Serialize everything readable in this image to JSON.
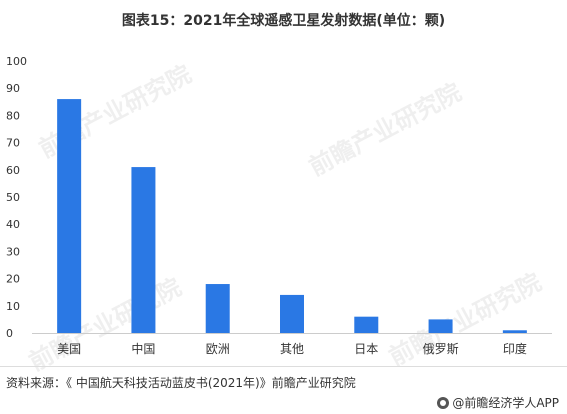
{
  "title": "图表15：2021年全球遥感卫星发射数据(单位：颗)",
  "watermark_text": "前瞻产业研究院",
  "source": "资料来源：《 中国航天科技活动蓝皮书(2021年)》前瞻产业研究院",
  "brand": "@前瞻经济学人APP",
  "colors": {
    "bar": "#2a78e4",
    "axis": "#cccccc",
    "text": "#333333"
  },
  "chart_data": {
    "type": "bar",
    "title": "图表15：2021年全球遥感卫星发射数据(单位：颗)",
    "xlabel": "",
    "ylabel": "",
    "categories": [
      "美国",
      "中国",
      "欧洲",
      "其他",
      "日本",
      "俄罗斯",
      "印度"
    ],
    "values": [
      86,
      61,
      18,
      14,
      6,
      5,
      1
    ],
    "ylim": [
      0,
      100
    ],
    "yticks": [
      0,
      10,
      20,
      30,
      40,
      50,
      60,
      70,
      80,
      90,
      100
    ],
    "grid": false,
    "legend": "none"
  }
}
